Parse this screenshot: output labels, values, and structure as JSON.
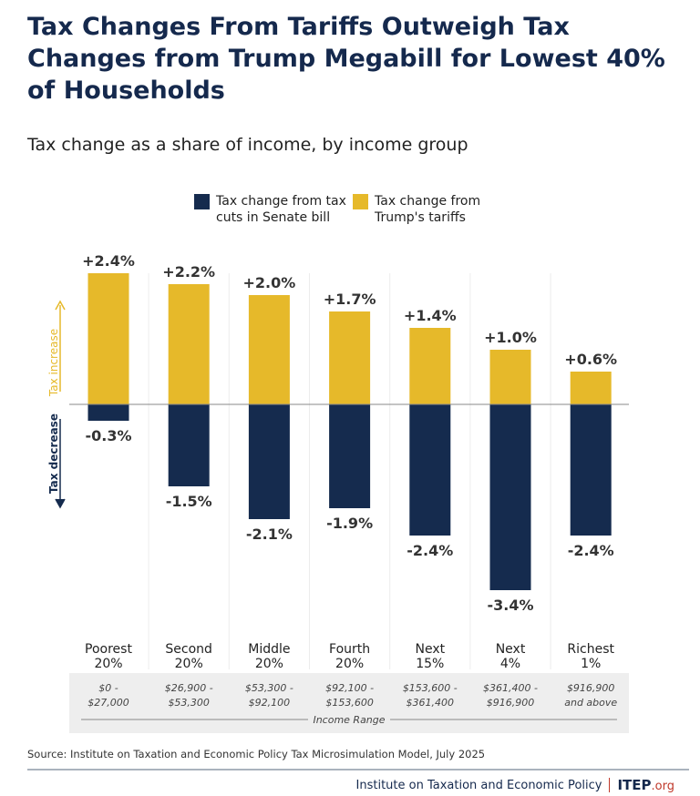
{
  "title": "Tax Changes From Tariffs Outweigh Tax Changes from Trump Megabill for Lowest 40% of Households",
  "subtitle": "Tax change as a share of income, by income group",
  "source": "Source: Institute on Taxation and Economic Policy Tax Microsimulation Model, July 2025",
  "footer": {
    "org": "Institute on Taxation and Economic Policy",
    "logo_main": "ITEP",
    "logo_suffix": ".org"
  },
  "colors": {
    "tariffs": "#e6b92a",
    "senate": "#152b4e",
    "title": "#15294d"
  },
  "chart_data": {
    "type": "bar",
    "title": "Tax Changes From Tariffs Outweigh Tax Changes from Trump Megabill for Lowest 40% of Households",
    "subtitle": "Tax change as a share of income, by income group",
    "categories": [
      "Poorest 20%",
      "Second 20%",
      "Middle 20%",
      "Fourth 20%",
      "Next 15%",
      "Next 4%",
      "Richest 1%"
    ],
    "category_lines": [
      [
        "Poorest",
        "20%"
      ],
      [
        "Second",
        "20%"
      ],
      [
        "Middle",
        "20%"
      ],
      [
        "Fourth",
        "20%"
      ],
      [
        "Next",
        "15%"
      ],
      [
        "Next",
        "4%"
      ],
      [
        "Richest",
        "1%"
      ]
    ],
    "income_ranges": [
      [
        "$0 -",
        "$27,000"
      ],
      [
        "$26,900 -",
        "$53,300"
      ],
      [
        "$53,300 -",
        "$92,100"
      ],
      [
        "$92,100 -",
        "$153,600"
      ],
      [
        "$153,600 -",
        "$361,400"
      ],
      [
        "$361,400 -",
        "$916,900"
      ],
      [
        "$916,900",
        "and above"
      ]
    ],
    "income_range_label": "Income Range",
    "series": [
      {
        "name": "Tax change from tax cuts in Senate bill",
        "color": "#152b4e",
        "values": [
          -0.3,
          -1.5,
          -2.1,
          -1.9,
          -2.4,
          -3.4,
          -2.4
        ],
        "labels": [
          "-0.3%",
          "-1.5%",
          "-2.1%",
          "-1.9%",
          "-2.4%",
          "-3.4%",
          "-2.4%"
        ]
      },
      {
        "name": "Tax change from Trump's tariffs",
        "color": "#e6b92a",
        "values": [
          2.4,
          2.2,
          2.0,
          1.7,
          1.4,
          1.0,
          0.6
        ],
        "labels": [
          "+2.4%",
          "+2.2%",
          "+2.0%",
          "+1.7%",
          "+1.4%",
          "+1.0%",
          "+0.6%"
        ]
      }
    ],
    "legend": {
      "senate": "Tax change from tax cuts in Senate bill",
      "tariffs": "Tax change from Trump's tariffs",
      "placement": "top"
    },
    "axis_annotations": {
      "up": "Tax increase",
      "down": "Tax decrease"
    },
    "ylim": [
      -3.4,
      2.4
    ],
    "grid": false
  }
}
